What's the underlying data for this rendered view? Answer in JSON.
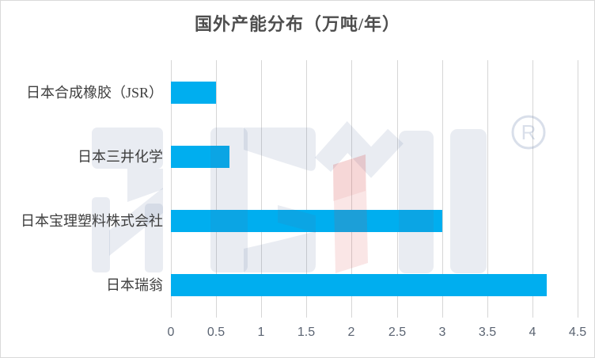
{
  "chart_data": {
    "type": "bar",
    "orientation": "horizontal",
    "title": "国外产能分布（万吨/年）",
    "categories": [
      "日本合成橡胶（JSR）",
      "日本三井化学",
      "日本宝理塑料株式会社",
      "日本瑞翁"
    ],
    "values": [
      0.5,
      0.65,
      3,
      4.16
    ],
    "xlabel": "",
    "ylabel": "",
    "xlim": [
      0,
      4.5
    ],
    "x_ticks": [
      "0",
      "0.5",
      "1",
      "1.5",
      "2",
      "2.5",
      "3",
      "3.5",
      "4",
      "4.5"
    ],
    "grid": true,
    "legend": false,
    "colors": {
      "bar": "#00aeef",
      "gridline": "#d6d6d6",
      "title_text": "#4e4e4e",
      "category_text": "#3f3f3f",
      "tick_text": "#5b6472",
      "chart_border": "#d9d9d9",
      "watermark_blue": "rgba(88,110,152,0.13)",
      "watermark_pink": "rgba(213,62,62,0.13)"
    }
  },
  "watermark": {
    "registered_mark": "R"
  }
}
